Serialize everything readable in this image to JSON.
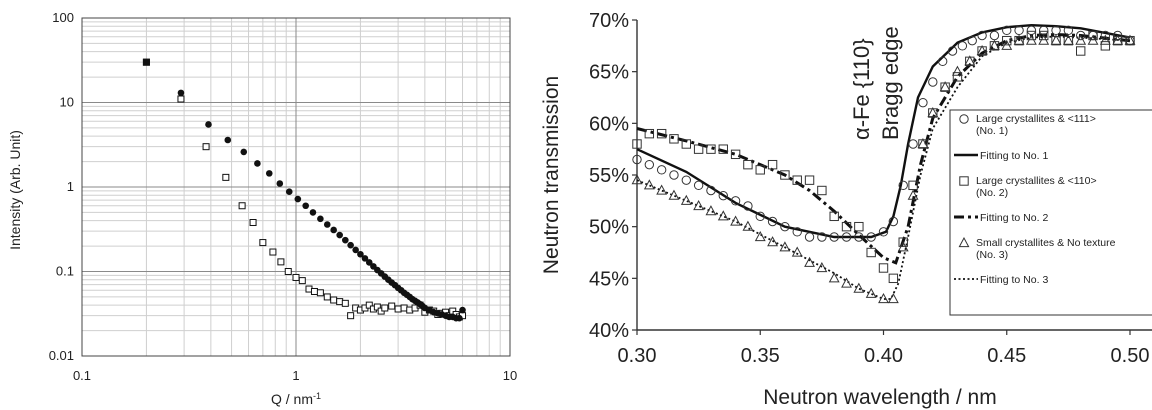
{
  "chart_data": [
    {
      "type": "scatter",
      "xlabel": "Q / nm",
      "xlabel_sup": "-1",
      "ylabel": "Intensity  (Arb. Unit)",
      "xscale": "log",
      "yscale": "log",
      "xlim": [
        0.1,
        10
      ],
      "ylim": [
        0.01,
        100
      ],
      "xticks": [
        {
          "v": 0.1,
          "label": "0.1"
        },
        {
          "v": 1,
          "label": "1"
        },
        {
          "v": 10,
          "label": "10"
        }
      ],
      "yticks": [
        {
          "v": 0.01,
          "label": "0.01"
        },
        {
          "v": 0.1,
          "label": "0.1"
        },
        {
          "v": 1,
          "label": "1"
        },
        {
          "v": 10,
          "label": "10"
        },
        {
          "v": 100,
          "label": "100"
        }
      ],
      "grid": true,
      "series": [
        {
          "marker": "filled-circle",
          "x": [
            0.2,
            0.29,
            0.39,
            0.48,
            0.57,
            0.66,
            0.75,
            0.84,
            0.93,
            1.02,
            1.11,
            1.2,
            1.3,
            1.4,
            1.5,
            1.6,
            1.7,
            1.8,
            1.9,
            2.0,
            2.1,
            2.2,
            2.3,
            2.4,
            2.5,
            2.6,
            2.7,
            2.8,
            2.9,
            3.0,
            3.1,
            3.2,
            3.3,
            3.4,
            3.5,
            3.6,
            3.7,
            3.8,
            3.9,
            4.0,
            4.2,
            4.4,
            4.6,
            4.8,
            5.0,
            5.2,
            5.4,
            5.6,
            5.8,
            6.0
          ],
          "y": [
            30,
            13,
            5.5,
            3.6,
            2.6,
            1.9,
            1.45,
            1.1,
            0.88,
            0.72,
            0.6,
            0.5,
            0.42,
            0.36,
            0.31,
            0.27,
            0.235,
            0.205,
            0.18,
            0.16,
            0.143,
            0.128,
            0.115,
            0.104,
            0.095,
            0.087,
            0.08,
            0.074,
            0.069,
            0.064,
            0.06,
            0.056,
            0.053,
            0.05,
            0.047,
            0.045,
            0.043,
            0.041,
            0.039,
            0.037,
            0.035,
            0.033,
            0.032,
            0.031,
            0.03,
            0.029,
            0.029,
            0.028,
            0.028,
            0.035
          ]
        },
        {
          "marker": "open-square",
          "x": [
            0.2,
            0.29,
            0.38,
            0.47,
            0.56,
            0.63,
            0.7,
            0.78,
            0.85,
            0.92,
            1.0,
            1.07,
            1.15,
            1.22,
            1.3,
            1.4,
            1.5,
            1.6,
            1.7,
            1.8,
            1.9,
            2.0,
            2.1,
            2.2,
            2.3,
            2.4,
            2.5,
            2.6,
            2.8,
            3.0,
            3.2,
            3.4,
            3.6,
            3.8,
            4.0,
            4.2,
            4.4,
            4.6,
            4.8,
            5.0,
            5.2,
            5.4,
            5.6,
            5.8,
            6.0
          ],
          "y": [
            30,
            11,
            3.0,
            1.3,
            0.6,
            0.38,
            0.22,
            0.17,
            0.13,
            0.1,
            0.085,
            0.078,
            0.062,
            0.058,
            0.056,
            0.05,
            0.046,
            0.044,
            0.042,
            0.03,
            0.037,
            0.035,
            0.037,
            0.04,
            0.036,
            0.038,
            0.034,
            0.037,
            0.039,
            0.036,
            0.037,
            0.035,
            0.037,
            0.04,
            0.033,
            0.035,
            0.034,
            0.031,
            0.032,
            0.033,
            0.03,
            0.034,
            0.031,
            0.029,
            0.03
          ]
        }
      ]
    },
    {
      "type": "line",
      "xlabel": "Neutron wavelength / nm",
      "ylabel": "Neutron transmission",
      "xlim": [
        0.3,
        0.5
      ],
      "ylim": [
        40,
        70
      ],
      "xticks": [
        {
          "v": 0.3,
          "label": "0.30"
        },
        {
          "v": 0.35,
          "label": "0.35"
        },
        {
          "v": 0.4,
          "label": "0.40"
        },
        {
          "v": 0.45,
          "label": "0.45"
        },
        {
          "v": 0.5,
          "label": "0.50"
        }
      ],
      "yticks": [
        {
          "v": 40,
          "label": "40%"
        },
        {
          "v": 45,
          "label": "45%"
        },
        {
          "v": 50,
          "label": "50%"
        },
        {
          "v": 55,
          "label": "55%"
        },
        {
          "v": 60,
          "label": "60%"
        },
        {
          "v": 65,
          "label": "65%"
        },
        {
          "v": 70,
          "label": "70%"
        }
      ],
      "grid": false,
      "annotation": [
        "α-Fe {110}",
        "Bragg edge"
      ],
      "legend_position": "right",
      "legend": [
        {
          "kind": "circle",
          "lines": [
            "Large crystallites & <111>",
            "(No. 1)"
          ]
        },
        {
          "kind": "solid",
          "lines": [
            "Fitting to No. 1"
          ]
        },
        {
          "kind": "square",
          "lines": [
            "Large crystallites & <110>",
            "(No. 2)"
          ]
        },
        {
          "kind": "dashdot",
          "lines": [
            "Fitting to No. 2"
          ]
        },
        {
          "kind": "triangle",
          "lines": [
            "Small crystallites & No texture",
            "(No. 3)"
          ]
        },
        {
          "kind": "dotted",
          "lines": [
            "Fitting to No. 3"
          ]
        }
      ],
      "measured": [
        {
          "marker": "circle",
          "x": [
            0.3,
            0.305,
            0.31,
            0.315,
            0.32,
            0.325,
            0.33,
            0.335,
            0.34,
            0.345,
            0.35,
            0.355,
            0.36,
            0.365,
            0.37,
            0.375,
            0.38,
            0.385,
            0.39,
            0.395,
            0.4,
            0.404,
            0.408,
            0.412,
            0.416,
            0.42,
            0.424,
            0.428,
            0.432,
            0.436,
            0.44,
            0.445,
            0.45,
            0.455,
            0.46,
            0.465,
            0.47,
            0.475,
            0.48,
            0.485,
            0.49,
            0.495,
            0.5
          ],
          "y": [
            56.5,
            56,
            55.5,
            55,
            54.5,
            54,
            53.5,
            53,
            52.5,
            52,
            51,
            50.5,
            50,
            49.5,
            49,
            49,
            49,
            49,
            49,
            49,
            49.5,
            50.5,
            54,
            58,
            62,
            64,
            66,
            67,
            67.5,
            68,
            68.5,
            68.5,
            69,
            69,
            69,
            69,
            69,
            69,
            68.5,
            68.5,
            68.5,
            68.5,
            68
          ]
        },
        {
          "marker": "square",
          "x": [
            0.3,
            0.305,
            0.31,
            0.315,
            0.32,
            0.325,
            0.33,
            0.335,
            0.34,
            0.345,
            0.35,
            0.355,
            0.36,
            0.365,
            0.37,
            0.375,
            0.38,
            0.385,
            0.39,
            0.395,
            0.4,
            0.404,
            0.408,
            0.412,
            0.416,
            0.42,
            0.425,
            0.43,
            0.435,
            0.44,
            0.445,
            0.45,
            0.455,
            0.46,
            0.465,
            0.47,
            0.475,
            0.48,
            0.485,
            0.49,
            0.495,
            0.5
          ],
          "y": [
            58,
            59,
            59,
            58.5,
            58,
            57.5,
            57.5,
            57.5,
            57,
            56,
            55.5,
            56,
            55,
            54.5,
            54.5,
            53.5,
            51,
            50,
            50,
            47.5,
            46,
            45,
            48.5,
            54,
            58,
            61,
            63.5,
            64.5,
            66,
            67,
            67.5,
            68,
            68,
            68.5,
            68.5,
            68,
            68,
            67,
            68.5,
            67.5,
            68,
            68
          ]
        },
        {
          "marker": "triangle",
          "x": [
            0.3,
            0.305,
            0.31,
            0.315,
            0.32,
            0.325,
            0.33,
            0.335,
            0.34,
            0.345,
            0.35,
            0.355,
            0.36,
            0.365,
            0.37,
            0.375,
            0.38,
            0.385,
            0.39,
            0.395,
            0.4,
            0.404,
            0.408,
            0.412,
            0.416,
            0.42,
            0.425,
            0.43,
            0.435,
            0.44,
            0.445,
            0.45,
            0.455,
            0.46,
            0.465,
            0.47,
            0.475,
            0.48,
            0.485,
            0.49,
            0.495,
            0.5
          ],
          "y": [
            54.5,
            54,
            53.5,
            53,
            52.5,
            52,
            51.5,
            51,
            50.5,
            50,
            49,
            48.5,
            48,
            47.5,
            46.5,
            46,
            45,
            44.5,
            44,
            43.5,
            43,
            43,
            48,
            53,
            58,
            61,
            63.5,
            65,
            66,
            67,
            67.5,
            67.5,
            68,
            68,
            68,
            68,
            68,
            68,
            68,
            68,
            68,
            68
          ]
        }
      ],
      "fits": [
        {
          "style": "solid",
          "x": [
            0.3,
            0.32,
            0.34,
            0.36,
            0.38,
            0.395,
            0.401,
            0.404,
            0.407,
            0.41,
            0.414,
            0.42,
            0.43,
            0.44,
            0.45,
            0.46,
            0.47,
            0.48,
            0.5
          ],
          "y": [
            57.5,
            55.3,
            52.3,
            50,
            49,
            49,
            49.5,
            51,
            54,
            58,
            62.5,
            65.5,
            67.8,
            68.8,
            69.3,
            69.5,
            69.4,
            69.2,
            68.3
          ]
        },
        {
          "style": "dashdot",
          "x": [
            0.3,
            0.32,
            0.34,
            0.36,
            0.37,
            0.38,
            0.39,
            0.4,
            0.405,
            0.41,
            0.415,
            0.42,
            0.43,
            0.44,
            0.45,
            0.46,
            0.47,
            0.48,
            0.5
          ],
          "y": [
            59.5,
            58.3,
            57,
            55,
            53.5,
            51.5,
            49.2,
            47,
            46.5,
            50,
            56,
            60.5,
            64.5,
            66.8,
            68,
            68.5,
            68.6,
            68.5,
            68
          ]
        },
        {
          "style": "dotted",
          "x": [
            0.3,
            0.32,
            0.34,
            0.36,
            0.38,
            0.39,
            0.4,
            0.403,
            0.406,
            0.41,
            0.415,
            0.42,
            0.43,
            0.44,
            0.45,
            0.46,
            0.47,
            0.48,
            0.5
          ],
          "y": [
            54.5,
            52.5,
            50.5,
            48,
            45.5,
            44,
            43,
            43,
            44.5,
            49,
            55,
            59.5,
            63.5,
            66.5,
            67.8,
            68.3,
            68.4,
            68.3,
            68
          ]
        }
      ]
    }
  ]
}
